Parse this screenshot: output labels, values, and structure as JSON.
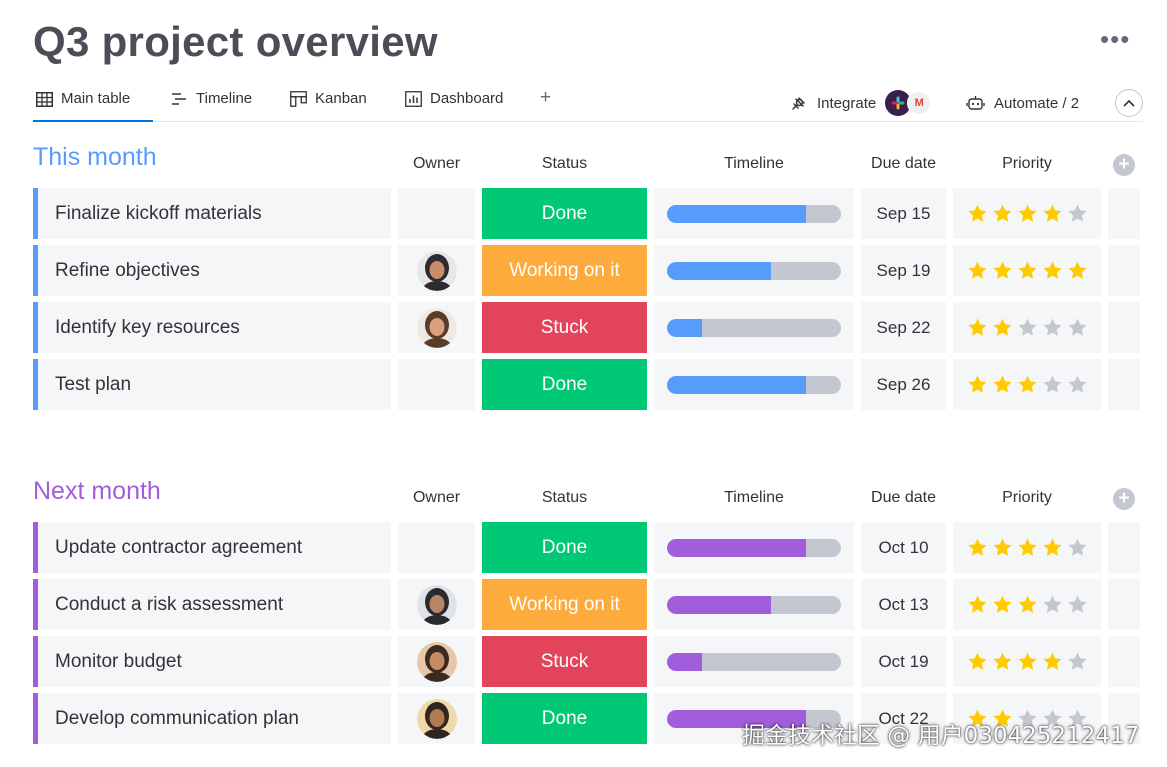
{
  "page": {
    "title": "Q3 project overview",
    "more_label": "•••"
  },
  "tabs": [
    {
      "label": "Main table",
      "icon": "table-icon"
    },
    {
      "label": "Timeline",
      "icon": "timeline-icon"
    },
    {
      "label": "Kanban",
      "icon": "kanban-icon"
    },
    {
      "label": "Dashboard",
      "icon": "dashboard-icon"
    },
    {
      "label": "+",
      "icon": "plus-icon"
    }
  ],
  "toolbar": {
    "integrate_label": "Integrate",
    "automate_label": "Automate / 2"
  },
  "columns": {
    "owner": "Owner",
    "status": "Status",
    "timeline": "Timeline",
    "due": "Due date",
    "priority": "Priority"
  },
  "colors": {
    "this_month": "#579bfc",
    "next_month": "#a25ddc",
    "done": "#00c875",
    "working": "#fdab3d",
    "stuck": "#e2445c",
    "star_on": "#ffcb00",
    "star_off": "#c5c7d0"
  },
  "groups": [
    {
      "title": "This month",
      "rows": [
        {
          "name": "Finalize kickoff materials",
          "owner": "",
          "status": "Done",
          "status_key": "done",
          "progress": 0.8,
          "due": "Sep 15",
          "priority": 4
        },
        {
          "name": "Refine objectives",
          "owner": "avatar",
          "status": "Working on it",
          "status_key": "working",
          "progress": 0.6,
          "due": "Sep 19",
          "priority": 5
        },
        {
          "name": "Identify key resources",
          "owner": "avatar",
          "status": "Stuck",
          "status_key": "stuck",
          "progress": 0.2,
          "due": "Sep 22",
          "priority": 2
        },
        {
          "name": "Test plan",
          "owner": "",
          "status": "Done",
          "status_key": "done",
          "progress": 0.8,
          "due": "Sep 26",
          "priority": 3
        }
      ]
    },
    {
      "title": "Next month",
      "rows": [
        {
          "name": "Update contractor agreement",
          "owner": "",
          "status": "Done",
          "status_key": "done",
          "progress": 0.8,
          "due": "Oct 10",
          "priority": 4
        },
        {
          "name": "Conduct a risk assessment",
          "owner": "avatar",
          "status": "Working on it",
          "status_key": "working",
          "progress": 0.6,
          "due": "Oct 13",
          "priority": 3
        },
        {
          "name": "Monitor budget",
          "owner": "avatar",
          "status": "Stuck",
          "status_key": "stuck",
          "progress": 0.2,
          "due": "Oct 19",
          "priority": 4
        },
        {
          "name": "Develop communication plan",
          "owner": "avatar",
          "status": "Done",
          "status_key": "done",
          "progress": 0.8,
          "due": "Oct 22",
          "priority": 2
        }
      ]
    }
  ],
  "watermark": "掘金技术社区 @ 用户030425212417"
}
